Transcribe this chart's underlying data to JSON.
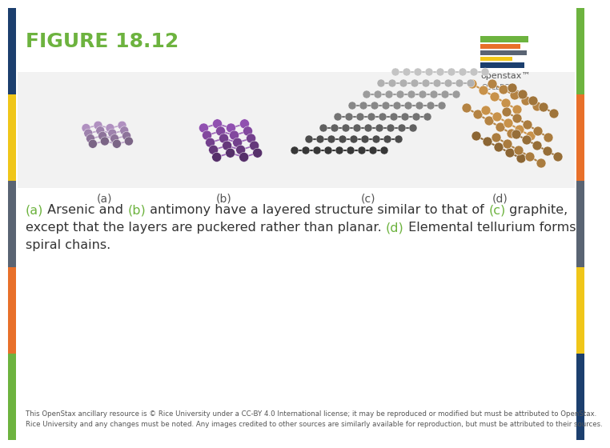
{
  "title": "FIGURE 18.12",
  "title_color": "#6db33f",
  "title_fontsize": 18,
  "bg_color": "#ffffff",
  "left_strip_colors": [
    "#1c3f6e",
    "#f0c619",
    "#5a6473",
    "#e8702a",
    "#6db33f"
  ],
  "right_strip_colors": [
    "#6db33f",
    "#e8702a",
    "#5a6473",
    "#f0c619",
    "#1c3f6e"
  ],
  "caption_fontsize": 11.5,
  "footer_fontsize": 6.2,
  "footer_color": "#555555",
  "footer_text": "This OpenStax ancillary resource is © Rice University under a CC-BY 4.0 International license; it may be reproduced or modified but must be attributed to OpenStax.\nRice University and any changes must be noted. Any images credited to other sources are similarly available for reproduction, but must be attributed to their sources.",
  "subfig_labels": [
    "(a)",
    "(b)",
    "(c)",
    "(d)"
  ],
  "subfig_label_color": "#555555",
  "subfig_label_fontsize": 10,
  "green_color": "#6db33f",
  "dark_text_color": "#333333",
  "arsenic_color": "#b090c0",
  "antimony_color": "#9050b0",
  "graphite_dark": "#404040",
  "graphite_mid": "#888888",
  "graphite_light": "#bbbbbb",
  "tellurium_color": "#c8924a",
  "tellurium_light": "#e0c090"
}
